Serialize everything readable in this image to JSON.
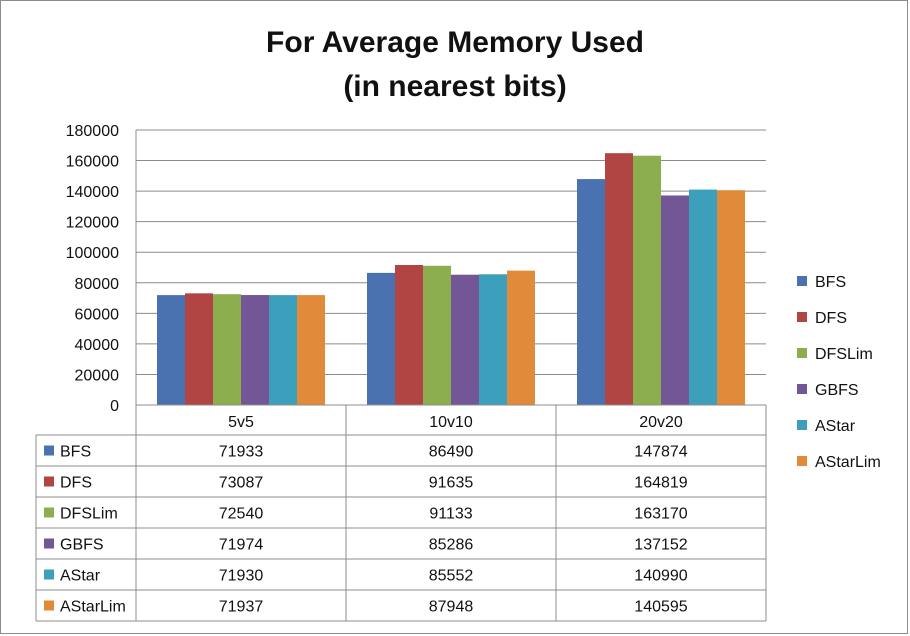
{
  "chart_data": {
    "type": "bar",
    "title_lines": [
      "For Average Memory Used",
      "(in nearest bits)"
    ],
    "xlabel": "",
    "ylabel": "",
    "categories": [
      "5v5",
      "10v10",
      "20v20"
    ],
    "ylim": [
      0,
      180000
    ],
    "yticks": [
      0,
      20000,
      40000,
      60000,
      80000,
      100000,
      120000,
      140000,
      160000,
      180000
    ],
    "grid": true,
    "legend_position": "right",
    "data_table": true,
    "series": [
      {
        "name": "BFS",
        "color": "#4a72b0",
        "values": [
          71933,
          86490,
          147874
        ]
      },
      {
        "name": "DFS",
        "color": "#b04543",
        "values": [
          73087,
          91635,
          164819
        ]
      },
      {
        "name": "DFSLim",
        "color": "#8dae4e",
        "values": [
          72540,
          91133,
          163170
        ]
      },
      {
        "name": "GBFS",
        "color": "#735695",
        "values": [
          71974,
          85286,
          137152
        ]
      },
      {
        "name": "AStar",
        "color": "#3c9fbc",
        "values": [
          71930,
          85552,
          140990
        ]
      },
      {
        "name": "AStarLim",
        "color": "#e08a3a",
        "values": [
          71937,
          87948,
          140595
        ]
      }
    ]
  }
}
